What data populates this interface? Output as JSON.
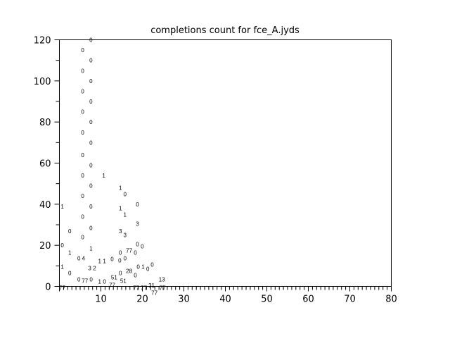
{
  "chart_data": {
    "type": "scatter",
    "title": "completions count for fce_A.jyds",
    "xlabel": "",
    "ylabel": "",
    "xlim": [
      0,
      80
    ],
    "ylim": [
      0,
      120
    ],
    "xticks": [
      "10",
      "20",
      "30",
      "40",
      "50",
      "60",
      "70",
      "80"
    ],
    "yticks": [
      "0",
      "20",
      "40",
      "60",
      "80",
      "100",
      "120"
    ],
    "grid": false,
    "marker": "text-label",
    "points": [
      {
        "x": 7.6,
        "y": 120,
        "label": "0"
      },
      {
        "x": 5.6,
        "y": 115,
        "label": "0"
      },
      {
        "x": 7.6,
        "y": 110,
        "label": "0"
      },
      {
        "x": 5.6,
        "y": 105,
        "label": "0"
      },
      {
        "x": 7.6,
        "y": 100,
        "label": "0"
      },
      {
        "x": 5.6,
        "y": 95,
        "label": "0"
      },
      {
        "x": 7.6,
        "y": 90,
        "label": "0"
      },
      {
        "x": 5.6,
        "y": 85,
        "label": "0"
      },
      {
        "x": 7.6,
        "y": 80,
        "label": "0"
      },
      {
        "x": 5.6,
        "y": 75,
        "label": "0"
      },
      {
        "x": 7.6,
        "y": 70,
        "label": "0"
      },
      {
        "x": 5.6,
        "y": 64,
        "label": "0"
      },
      {
        "x": 7.6,
        "y": 59,
        "label": "0"
      },
      {
        "x": 5.6,
        "y": 54,
        "label": "0"
      },
      {
        "x": 10.7,
        "y": 54,
        "label": "1"
      },
      {
        "x": 7.6,
        "y": 49,
        "label": "0"
      },
      {
        "x": 14.7,
        "y": 48,
        "label": "1"
      },
      {
        "x": 15.8,
        "y": 45,
        "label": "0"
      },
      {
        "x": 5.6,
        "y": 44,
        "label": "0"
      },
      {
        "x": 0.7,
        "y": 39,
        "label": "1"
      },
      {
        "x": 7.6,
        "y": 39,
        "label": "0"
      },
      {
        "x": 18.8,
        "y": 40,
        "label": "0"
      },
      {
        "x": 14.7,
        "y": 38,
        "label": "1"
      },
      {
        "x": 15.8,
        "y": 35,
        "label": "1"
      },
      {
        "x": 5.6,
        "y": 34,
        "label": "0"
      },
      {
        "x": 18.8,
        "y": 30.5,
        "label": "3"
      },
      {
        "x": 7.6,
        "y": 28.5,
        "label": "0"
      },
      {
        "x": 2.5,
        "y": 27,
        "label": "0"
      },
      {
        "x": 14.7,
        "y": 27,
        "label": "3"
      },
      {
        "x": 15.8,
        "y": 25,
        "label": "3"
      },
      {
        "x": 5.6,
        "y": 24,
        "label": "0"
      },
      {
        "x": 0.7,
        "y": 20,
        "label": "0"
      },
      {
        "x": 18.8,
        "y": 20.5,
        "label": "0"
      },
      {
        "x": 19.8,
        "y": 19.5,
        "label": "0"
      },
      {
        "x": 7.6,
        "y": 18.5,
        "label": "1"
      },
      {
        "x": 14.7,
        "y": 16.5,
        "label": "0"
      },
      {
        "x": 16.8,
        "y": 17.5,
        "label": "77"
      },
      {
        "x": 17.8,
        "y": 16.5,
        "label": "0"
      },
      {
        "x": 15.8,
        "y": 14.4,
        "label": "0"
      },
      {
        "x": 12.7,
        "y": 13.4,
        "label": "0"
      },
      {
        "x": 13.7,
        "y": 14.4,
        "label": "0"
      },
      {
        "x": 2.5,
        "y": 16.5,
        "label": "1"
      },
      {
        "x": 4.7,
        "y": 13.7,
        "label": "0"
      },
      {
        "x": 5.8,
        "y": 13.7,
        "label": "4"
      },
      {
        "x": 9.7,
        "y": 12.3,
        "label": "1"
      },
      {
        "x": 10.7,
        "y": 12.3,
        "label": "1"
      },
      {
        "x": 0.7,
        "y": 9.6,
        "label": "1"
      },
      {
        "x": 7.3,
        "y": 9,
        "label": "3"
      },
      {
        "x": 8.3,
        "y": 9,
        "label": "2"
      },
      {
        "x": 19,
        "y": 9.6,
        "label": "0"
      },
      {
        "x": 20,
        "y": 9.6,
        "label": "1"
      },
      {
        "x": 20.8,
        "y": 8.6,
        "label": "0"
      },
      {
        "x": 21.7,
        "y": 10.6,
        "label": "0"
      },
      {
        "x": 16.8,
        "y": 7.5,
        "label": "28"
      },
      {
        "x": 14.7,
        "y": 6.5,
        "label": "0"
      },
      {
        "x": 17.8,
        "y": 6.5,
        "label": "0"
      },
      {
        "x": 2.5,
        "y": 6.5,
        "label": "0"
      },
      {
        "x": 13.7,
        "y": 4.5,
        "label": "51"
      },
      {
        "x": 15.4,
        "y": 4.5,
        "label": "51"
      },
      {
        "x": 24.7,
        "y": 3.4,
        "label": "13"
      },
      {
        "x": 4.7,
        "y": 3.4,
        "label": "0"
      },
      {
        "x": 5.8,
        "y": 2.7,
        "label": "77"
      },
      {
        "x": 6.8,
        "y": 3.4,
        "label": "0"
      },
      {
        "x": 9.7,
        "y": 2.4,
        "label": "1"
      },
      {
        "x": 10.7,
        "y": 2.4,
        "label": "0"
      },
      {
        "x": 12.7,
        "y": 2.4,
        "label": "77"
      },
      {
        "x": 0.7,
        "y": -0.6,
        "label": "77"
      },
      {
        "x": 18.5,
        "y": -0.6,
        "label": "77"
      },
      {
        "x": 20,
        "y": -0.6,
        "label": "77"
      },
      {
        "x": 21.7,
        "y": 0.5,
        "label": "31"
      },
      {
        "x": 22.9,
        "y": -0.6,
        "label": "77"
      },
      {
        "x": 24,
        "y": -0.6,
        "label": "77"
      }
    ]
  }
}
